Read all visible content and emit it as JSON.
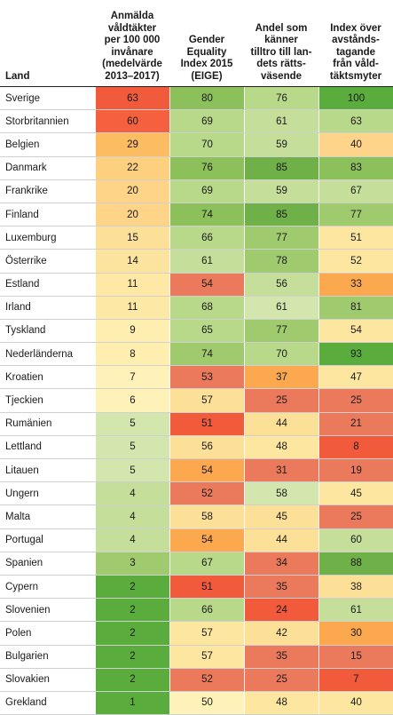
{
  "headers": [
    "Land",
    "Anmälda våldtäkter per 100 000 invånare (medelvärde 2013–2017)",
    "Gender Equality Index 2015 (EIGE)",
    "Andel som känner tilltro till landets rättsväsende",
    "Index över avståndstagande från våldtäktsmyter"
  ],
  "header_lines": [
    [
      "Land"
    ],
    [
      "Anmälda",
      "våldtäkter",
      "per 100 000",
      "invånare",
      "(medelvärde",
      "2013–2017)"
    ],
    [
      "Gender",
      "Equality",
      "Index 2015",
      "(EIGE)"
    ],
    [
      "Andel som",
      "känner",
      "tilltro till lan-",
      "dets rätts-",
      "väsende"
    ],
    [
      "Index över",
      "avstånds-",
      "tagande",
      "från våld-",
      "täktsmyter"
    ]
  ],
  "rows": [
    {
      "land": "Sverige",
      "v": [
        63,
        80,
        76,
        100
      ],
      "c": [
        "#f15a3a",
        "#8cc05a",
        "#b9d98a",
        "#5aad3c"
      ]
    },
    {
      "land": "Storbritannien",
      "v": [
        60,
        69,
        61,
        63
      ],
      "c": [
        "#f5613e",
        "#b9d98a",
        "#c5df9a",
        "#b9d98a"
      ]
    },
    {
      "land": "Belgien",
      "v": [
        29,
        70,
        59,
        40
      ],
      "c": [
        "#fcbd62",
        "#b9d98a",
        "#c5df9a",
        "#fdd48a"
      ]
    },
    {
      "land": "Danmark",
      "v": [
        22,
        76,
        85,
        83
      ],
      "c": [
        "#fdd080",
        "#8cc05a",
        "#6fb048",
        "#8cc05a"
      ]
    },
    {
      "land": "Frankrike",
      "v": [
        20,
        69,
        59,
        67
      ],
      "c": [
        "#fdd488",
        "#b9d98a",
        "#c5df9a",
        "#c5df9a"
      ]
    },
    {
      "land": "Finland",
      "v": [
        20,
        74,
        85,
        77
      ],
      "c": [
        "#fdd488",
        "#8cc05a",
        "#6fb048",
        "#a0ca6e"
      ]
    },
    {
      "land": "Luxemburg",
      "v": [
        15,
        66,
        77,
        51
      ],
      "c": [
        "#fde098",
        "#b9d98a",
        "#a0ca6e",
        "#fde7a0"
      ]
    },
    {
      "land": "Österrike",
      "v": [
        14,
        61,
        78,
        52
      ],
      "c": [
        "#fde49e",
        "#c5df9a",
        "#a0ca6e",
        "#fde7a0"
      ]
    },
    {
      "land": "Estland",
      "v": [
        11,
        54,
        56,
        33
      ],
      "c": [
        "#fde8a6",
        "#eb7a5c",
        "#c5df9a",
        "#fba84f"
      ]
    },
    {
      "land": "Irland",
      "v": [
        11,
        68,
        61,
        81
      ],
      "c": [
        "#fde8a6",
        "#b9d98a",
        "#d3e6ad",
        "#a0ca6e"
      ]
    },
    {
      "land": "Tyskland",
      "v": [
        9,
        65,
        77,
        54
      ],
      "c": [
        "#feeeb0",
        "#b9d98a",
        "#a0ca6e",
        "#fde7a0"
      ]
    },
    {
      "land": "Nederländerna",
      "v": [
        8,
        74,
        70,
        93
      ],
      "c": [
        "#feeeb0",
        "#a0ca6e",
        "#b9d98a",
        "#5aad3c"
      ]
    },
    {
      "land": "Kroatien",
      "v": [
        7,
        53,
        37,
        47
      ],
      "c": [
        "#fff2b8",
        "#eb7a5c",
        "#fba84f",
        "#fde7a0"
      ]
    },
    {
      "land": "Tjeckien",
      "v": [
        6,
        57,
        25,
        25
      ],
      "c": [
        "#fff2b8",
        "#fde098",
        "#eb7a5c",
        "#eb7a5c"
      ]
    },
    {
      "land": "Rumänien",
      "v": [
        5,
        51,
        44,
        21
      ],
      "c": [
        "#d3e6ad",
        "#f15a3a",
        "#fde098",
        "#eb7a5c"
      ]
    },
    {
      "land": "Lettland",
      "v": [
        5,
        56,
        48,
        8
      ],
      "c": [
        "#d3e6ad",
        "#fde098",
        "#fde7a0",
        "#f15a3a"
      ]
    },
    {
      "land": "Litauen",
      "v": [
        5,
        54,
        31,
        19
      ],
      "c": [
        "#d3e6ad",
        "#fba84f",
        "#eb7a5c",
        "#eb7a5c"
      ]
    },
    {
      "land": "Ungern",
      "v": [
        4,
        52,
        58,
        45
      ],
      "c": [
        "#c5df9a",
        "#eb7a5c",
        "#d3e6ad",
        "#fde7a0"
      ]
    },
    {
      "land": "Malta",
      "v": [
        4,
        58,
        45,
        25
      ],
      "c": [
        "#c5df9a",
        "#fde098",
        "#fde098",
        "#eb7a5c"
      ]
    },
    {
      "land": "Portugal",
      "v": [
        4,
        54,
        44,
        60
      ],
      "c": [
        "#c5df9a",
        "#fba84f",
        "#fde098",
        "#c5df9a"
      ]
    },
    {
      "land": "Spanien",
      "v": [
        3,
        67,
        34,
        88
      ],
      "c": [
        "#a0ca6e",
        "#b9d98a",
        "#eb7a5c",
        "#6fb048"
      ]
    },
    {
      "land": "Cypern",
      "v": [
        2,
        51,
        35,
        38
      ],
      "c": [
        "#5aad3c",
        "#f15a3a",
        "#eb7a5c",
        "#fde098"
      ]
    },
    {
      "land": "Slovenien",
      "v": [
        2,
        66,
        24,
        61
      ],
      "c": [
        "#5aad3c",
        "#b9d98a",
        "#f15a3a",
        "#c5df9a"
      ]
    },
    {
      "land": "Polen",
      "v": [
        2,
        57,
        42,
        30
      ],
      "c": [
        "#5aad3c",
        "#fde7a0",
        "#fde098",
        "#fba84f"
      ]
    },
    {
      "land": "Bulgarien",
      "v": [
        2,
        57,
        35,
        15
      ],
      "c": [
        "#5aad3c",
        "#fde7a0",
        "#eb7a5c",
        "#eb7a5c"
      ]
    },
    {
      "land": "Slovakien",
      "v": [
        2,
        52,
        25,
        7
      ],
      "c": [
        "#5aad3c",
        "#eb7a5c",
        "#eb7a5c",
        "#f15a3a"
      ]
    },
    {
      "land": "Grekland",
      "v": [
        1,
        50,
        48,
        40
      ],
      "c": [
        "#5aad3c",
        "#fff2b8",
        "#fde7a0",
        "#fde7a0"
      ]
    }
  ]
}
